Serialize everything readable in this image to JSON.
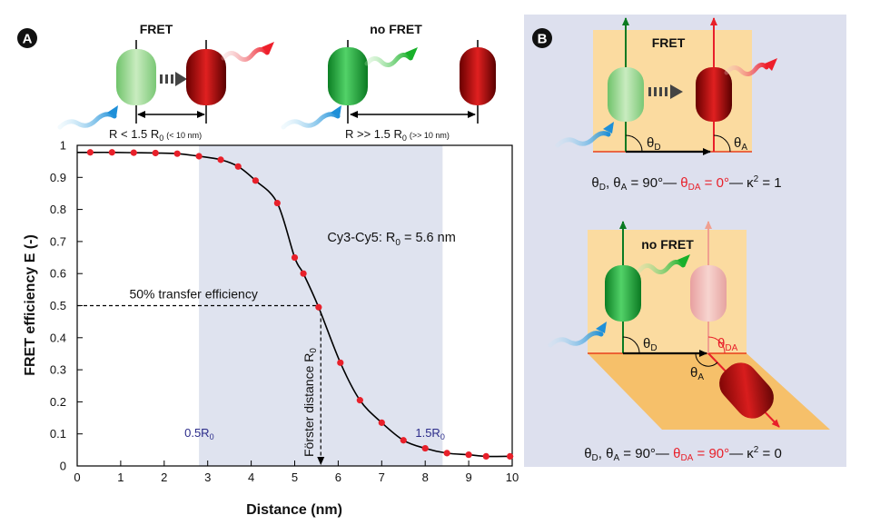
{
  "panel_a": {
    "label": "A",
    "state_fret": "FRET",
    "state_nofret": "no FRET",
    "cond_fret": {
      "main": "R < 1.5 R",
      "sub": "0",
      "small": "(< 10 nm)"
    },
    "cond_nofret": {
      "main": "R >> 1.5 R",
      "sub": "0",
      "small": "(>> 10 nm)"
    }
  },
  "chart_data": {
    "type": "scatter",
    "xlabel": "Distance (nm)",
    "ylabel": "FRET efficiency  E  (-)",
    "xlim": [
      0,
      10
    ],
    "ylim": [
      0,
      1
    ],
    "xticks": [
      0,
      1,
      2,
      3,
      4,
      5,
      6,
      7,
      8,
      9,
      10
    ],
    "yticks": [
      0,
      0.1,
      0.2,
      0.3,
      0.4,
      0.5,
      0.6,
      0.7,
      0.8,
      0.9,
      1
    ],
    "shaded_region": [
      2.8,
      8.4
    ],
    "shaded_labels": [
      {
        "x": 2.8,
        "text": "0.5R",
        "sub": "0"
      },
      {
        "x": 8.4,
        "text": "1.5R",
        "sub": "0"
      }
    ],
    "annotation_pair": {
      "text": "Cy3-Cy5: R",
      "sub": "0",
      "rest": " = 5.6 nm"
    },
    "half_line_label": "50% transfer efficiency",
    "forster_label": {
      "text": "Förster distance R",
      "sub": "0"
    },
    "r0": 5.6,
    "points": [
      {
        "x": 0.3,
        "y": 0.978
      },
      {
        "x": 0.8,
        "y": 0.978
      },
      {
        "x": 1.3,
        "y": 0.977
      },
      {
        "x": 1.8,
        "y": 0.976
      },
      {
        "x": 2.3,
        "y": 0.974
      },
      {
        "x": 2.8,
        "y": 0.966
      },
      {
        "x": 3.3,
        "y": 0.955
      },
      {
        "x": 3.7,
        "y": 0.934
      },
      {
        "x": 4.1,
        "y": 0.89
      },
      {
        "x": 4.6,
        "y": 0.82
      },
      {
        "x": 5.0,
        "y": 0.65
      },
      {
        "x": 5.2,
        "y": 0.6
      },
      {
        "x": 5.55,
        "y": 0.495
      },
      {
        "x": 6.05,
        "y": 0.322
      },
      {
        "x": 6.5,
        "y": 0.205
      },
      {
        "x": 7.0,
        "y": 0.135
      },
      {
        "x": 7.5,
        "y": 0.08
      },
      {
        "x": 8.0,
        "y": 0.055
      },
      {
        "x": 8.5,
        "y": 0.04
      },
      {
        "x": 9.0,
        "y": 0.035
      },
      {
        "x": 9.4,
        "y": 0.03
      },
      {
        "x": 9.95,
        "y": 0.03
      }
    ],
    "colors": {
      "points": "#e8202a",
      "curve": "#000000",
      "shade": "#dfe3ef"
    }
  },
  "panel_b": {
    "label": "B",
    "top": {
      "title": "FRET",
      "theta_d": {
        "t": "θ",
        "s": "D"
      },
      "theta_a": {
        "t": "θ",
        "s": "A"
      },
      "formula": {
        "p1": "θ",
        "s1": "D",
        "p2": ", θ",
        "s2": "A",
        "p3": " = 90°— ",
        "red1": "θ",
        "rs": "DA",
        "red2": " = 0°",
        "p4": "— κ",
        "sup": "2",
        "p5": " = 1"
      }
    },
    "bottom": {
      "title": "no FRET",
      "theta_d": {
        "t": "θ",
        "s": "D"
      },
      "theta_a": {
        "t": "θ",
        "s": "A"
      },
      "theta_da": {
        "t": "θ",
        "s": "DA"
      },
      "formula": {
        "p1": "θ",
        "s1": "D",
        "p2": ", θ",
        "s2": "A",
        "p3": " = 90°— ",
        "red1": "θ",
        "rs": "DA",
        "red2": " = 90°",
        "p4": "— κ",
        "sup": "2",
        "p5": " = 0"
      }
    },
    "colors": {
      "bg": "#dde0ee",
      "plane": "#fbdba0",
      "red": "#e8202a"
    }
  }
}
